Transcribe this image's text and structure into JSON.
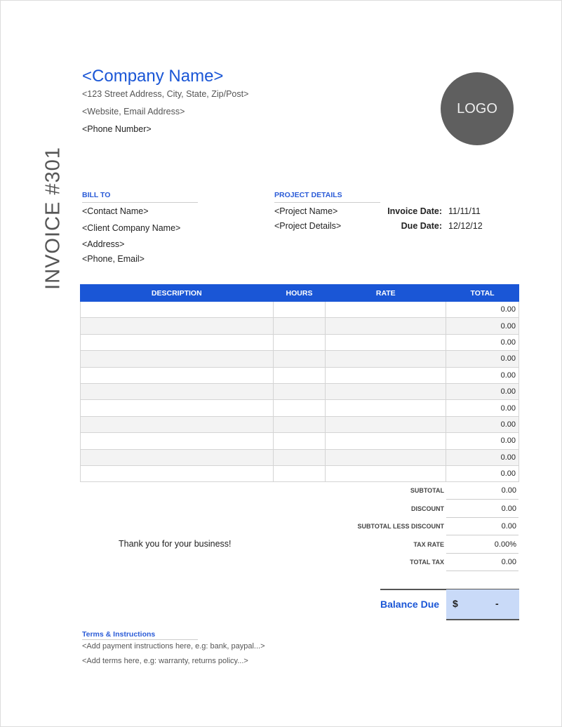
{
  "company": {
    "name": "<Company Name>",
    "address": "<123 Street Address, City, State, Zip/Post>",
    "web": "<Website, Email Address>",
    "phone": "<Phone Number>",
    "logo": "LOGO"
  },
  "invoice_title": "INVOICE #301",
  "bill_to": {
    "title": "BILL TO",
    "lines": [
      "<Contact Name>",
      "<Client Company Name>",
      "<Address>",
      "<Phone, Email>"
    ]
  },
  "project": {
    "title": "PROJECT DETAILS",
    "lines": [
      "<Project Name>",
      "<Project Details>"
    ]
  },
  "dates": {
    "invoice_label": "Invoice Date:",
    "invoice_value": "11/11/11",
    "due_label": "Due Date:",
    "due_value": "12/12/12"
  },
  "table": {
    "headers": [
      "DESCRIPTION",
      "HOURS",
      "RATE",
      "TOTAL"
    ],
    "row_totals": [
      "0.00",
      "0.00",
      "0.00",
      "0.00",
      "0.00",
      "0.00",
      "0.00",
      "0.00",
      "0.00",
      "0.00",
      "0.00"
    ]
  },
  "summary": [
    {
      "label": "SUBTOTAL",
      "value": "0.00"
    },
    {
      "label": "DISCOUNT",
      "value": "0.00"
    },
    {
      "label": "SUBTOTAL LESS DISCOUNT",
      "value": "0.00"
    },
    {
      "label": "TAX RATE",
      "value": "0.00%"
    },
    {
      "label": "TOTAL TAX",
      "value": "0.00"
    }
  ],
  "balance": {
    "label": "Balance Due",
    "currency": "$",
    "value": "-"
  },
  "thanks": "Thank you for your business!",
  "terms": {
    "title": "Terms & Instructions",
    "lines": [
      "<Add payment instructions here, e.g: bank, paypal...>",
      "<Add terms here, e.g: warranty, returns policy...>"
    ]
  },
  "colors": {
    "accent": "#1a56d6",
    "balance_bg": "#c9daf8",
    "logo_bg": "#5f5f5f"
  }
}
